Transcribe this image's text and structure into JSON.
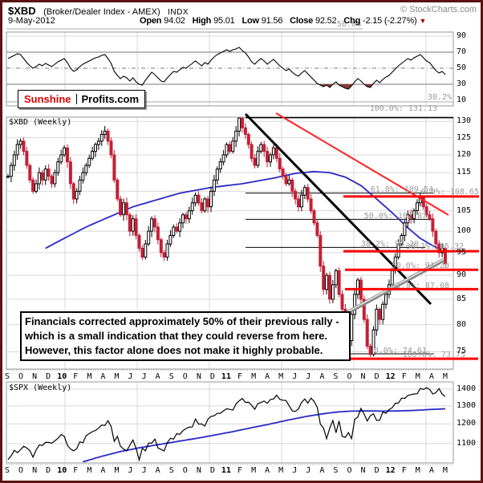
{
  "header": {
    "symbol": "$XBD",
    "name": "(Broker/Dealer Index - AMEX)",
    "exchange": "INDX",
    "copyright": "© StockCharts.com",
    "date": "9-May-2012",
    "quote": [
      {
        "label": "Open",
        "value": "94.02"
      },
      {
        "label": "High",
        "value": "95.01"
      },
      {
        "label": "Low",
        "value": "91.56"
      },
      {
        "label": "Close",
        "value": "92.52"
      },
      {
        "label": "Chg",
        "value": "-2.15 (-2.27%)"
      }
    ],
    "chg_direction": "down"
  },
  "icons": {
    "chg_down": "▼"
  },
  "logo": {
    "left": "Sunshine",
    "right": "Profits.com"
  },
  "annotation": {
    "lines": [
      "Financials corrected approximately 50% of their previous rally -",
      "which is a small indication that they could reverse from here.",
      "However, this factor alone does not make it highly probable."
    ]
  },
  "panels": {
    "rsi": {
      "yticks": [
        90,
        70,
        50,
        30,
        10
      ]
    },
    "main": {
      "title": "$XBD (Weekly)",
      "yticks": [
        130,
        125,
        120,
        115,
        105,
        100,
        95,
        90,
        85,
        80,
        75
      ]
    },
    "spx": {
      "title": "$SPX (Weekly)",
      "yticks": [
        1400,
        1300,
        1200,
        1100
      ]
    }
  },
  "x_axis": {
    "months": [
      "S",
      "O",
      "N",
      "D",
      "10",
      "F",
      "M",
      "A",
      "M",
      "J",
      "J",
      "A",
      "S",
      "O",
      "N",
      "D",
      "11",
      "F",
      "M",
      "A",
      "M",
      "J",
      "J",
      "A",
      "S",
      "O",
      "N",
      "D",
      "12",
      "F",
      "M",
      "A",
      "M"
    ],
    "bold_indices": [
      4,
      16,
      28
    ]
  },
  "colors": {
    "frame": "#5a1414",
    "grid": "#d8d8d8",
    "panel_border": "#999999",
    "candle_down": "#c32136",
    "ma_blue": "#2929c8",
    "fib_red": "#ff0000",
    "trend_black": "#000000",
    "trend_red": "#ff2020",
    "trend_silver": "#8a8a8a",
    "fib_text": "#999999",
    "indicator": "#000000",
    "oversold_fill": "#8b3a3a"
  },
  "chart_data": [
    {
      "type": "line",
      "name": "momentum-indicator",
      "panel": "top",
      "ylim": [
        0,
        100
      ],
      "overbought": 70,
      "midline": 50,
      "oversold": 30,
      "context_fib_labels": [
        {
          "pct": "50.0%",
          "y": 36,
          "x2": 452
        },
        {
          "pct": "38.2%",
          "y": 127,
          "x2": 565
        }
      ],
      "values": [
        62,
        64,
        66,
        68,
        67,
        62,
        57,
        53,
        50,
        52,
        55,
        53,
        56,
        54,
        52,
        55,
        58,
        60,
        62,
        57,
        50,
        46,
        48,
        52,
        55,
        57,
        59,
        61,
        63,
        64,
        66,
        67,
        62,
        56,
        46,
        41,
        37,
        40,
        38,
        34,
        38,
        33,
        30,
        29,
        35,
        40,
        45,
        42,
        38,
        34,
        33,
        38,
        42,
        46,
        45,
        48,
        51,
        50,
        53,
        56,
        59,
        56,
        53,
        57,
        55,
        60,
        64,
        67,
        69,
        71,
        73,
        71,
        73,
        74,
        76,
        72,
        69,
        64,
        58,
        55,
        59,
        62,
        59,
        55,
        58,
        61,
        57,
        53,
        50,
        47,
        49,
        45,
        42,
        40,
        44,
        47,
        43,
        39,
        35,
        31,
        29,
        27,
        29,
        26,
        30,
        33,
        29,
        27,
        25,
        24,
        28,
        33,
        37,
        34,
        30,
        27,
        26,
        31,
        35,
        32,
        36,
        39,
        41,
        45,
        49,
        53,
        56,
        59,
        62,
        60,
        63,
        65,
        67,
        63,
        59,
        57,
        52,
        47,
        44,
        46,
        42
      ]
    },
    {
      "type": "candlestick",
      "name": "xbd-weekly",
      "panel": "main",
      "scale": "log",
      "weekly_closes": [
        114,
        117,
        120,
        123,
        124,
        121,
        117,
        113,
        110,
        112,
        115,
        113,
        116,
        114,
        112,
        115,
        118,
        120,
        122,
        118,
        112,
        108,
        110,
        113,
        115,
        117,
        119,
        121,
        123,
        124,
        126,
        127,
        124,
        120,
        113,
        108,
        104,
        107,
        104,
        100,
        103,
        99,
        96,
        94,
        97,
        100,
        103,
        101,
        98,
        95,
        94,
        97,
        99,
        101,
        100,
        102,
        104,
        103,
        105,
        107,
        109,
        107,
        105,
        108,
        106,
        110,
        113,
        116,
        118,
        120,
        123,
        121,
        124,
        127,
        131,
        128,
        126,
        123,
        119,
        117,
        121,
        123,
        121,
        118,
        120,
        122,
        119,
        116,
        114,
        112,
        113,
        110,
        108,
        106,
        109,
        111,
        108,
        105,
        102,
        99,
        92,
        87,
        90,
        85,
        88,
        91,
        86,
        83,
        80,
        77,
        82,
        86,
        89,
        85,
        81,
        76,
        74.5,
        79,
        83,
        81,
        84,
        86,
        88,
        91,
        94,
        97,
        99,
        102,
        104,
        103,
        105,
        107,
        108.4,
        106,
        104,
        103,
        100,
        97,
        95,
        96,
        92.52
      ],
      "ma_anchors": [
        [
          12,
          96
        ],
        [
          25,
          101
        ],
        [
          40,
          106
        ],
        [
          55,
          109.5
        ],
        [
          65,
          111
        ],
        [
          75,
          112
        ],
        [
          85,
          113.5
        ],
        [
          92,
          114.8
        ],
        [
          98,
          115.3
        ],
        [
          103,
          115
        ],
        [
          108,
          113.8
        ],
        [
          113,
          111.5
        ],
        [
          118,
          108
        ],
        [
          123,
          104.5
        ],
        [
          128,
          100.8
        ],
        [
          132,
          98.3
        ],
        [
          136,
          96.6
        ],
        [
          140,
          95.2
        ]
      ],
      "fib_major": [
        {
          "pct": "100.0%",
          "price": 131.13
        },
        {
          "pct": "61.8%",
          "price": 109.54
        },
        {
          "pct": "50.0%",
          "price": 102.87
        },
        {
          "pct": "38.2%",
          "price": 96.2
        },
        {
          "pct": "0.0%",
          "price": 74.61
        }
      ],
      "fib_minor": [
        {
          "pct": "0.0%",
          "price": 108.65
        },
        {
          "pct": "38.2%",
          "price": 95.32
        },
        {
          "pct": "50.0%",
          "price": 91.2
        },
        {
          "pct": "61.8%",
          "price": 87.08
        },
        {
          "pct": "100.0%",
          "price": 73.75
        }
      ],
      "trendlines": [
        {
          "name": "downtrend-line",
          "color": "#000000",
          "width": 3,
          "x1": 306,
          "y1": 142,
          "x2": 537,
          "y2": 379
        },
        {
          "name": "resistance-line",
          "color": "#ff2020",
          "width": 2,
          "x1": 344,
          "y1": 141,
          "x2": 559,
          "y2": 268
        },
        {
          "name": "support-channel-line",
          "color": "#8a8a8a",
          "width": 5,
          "x1": 425,
          "y1": 394,
          "x2": 553,
          "y2": 324,
          "highlight": true
        }
      ]
    },
    {
      "type": "line",
      "name": "spx-weekly",
      "panel": "bottom",
      "weekly_closes": [
        1025,
        1042,
        1068,
        1057,
        1071,
        1087,
        1079,
        1066,
        1036,
        1069,
        1093,
        1091,
        1106,
        1106,
        1102,
        1114,
        1126,
        1145,
        1136,
        1092,
        1074,
        1066,
        1075,
        1109,
        1104,
        1139,
        1150,
        1160,
        1166,
        1178,
        1194,
        1192,
        1217,
        1187,
        1111,
        1136,
        1088,
        1074,
        1065,
        1092,
        1118,
        1077,
        1023,
        1078,
        1065,
        1103,
        1102,
        1122,
        1079,
        1072,
        1065,
        1105,
        1126,
        1122,
        1149,
        1146,
        1165,
        1176,
        1183,
        1184,
        1226,
        1199,
        1200,
        1189,
        1225,
        1240,
        1244,
        1257,
        1258,
        1272,
        1283,
        1280,
        1276,
        1311,
        1329,
        1343,
        1320,
        1321,
        1304,
        1280,
        1313,
        1319,
        1328,
        1314,
        1337,
        1340,
        1363,
        1338,
        1333,
        1331,
        1300,
        1271,
        1268,
        1283,
        1320,
        1340,
        1316,
        1345,
        1325,
        1292,
        1199,
        1179,
        1124,
        1178,
        1218,
        1154,
        1216,
        1136,
        1131,
        1155,
        1125,
        1224,
        1238,
        1285,
        1254,
        1216,
        1244,
        1255,
        1219,
        1220,
        1265,
        1258,
        1278,
        1289,
        1315,
        1316,
        1345,
        1343,
        1361,
        1366,
        1370,
        1371,
        1404,
        1397,
        1408,
        1398,
        1370,
        1378,
        1403,
        1369,
        1354
      ],
      "ma_anchors": [
        [
          24,
          1015
        ],
        [
          30,
          1040
        ],
        [
          36,
          1062
        ],
        [
          42,
          1080
        ],
        [
          48,
          1095
        ],
        [
          54,
          1110
        ],
        [
          60,
          1125
        ],
        [
          66,
          1142
        ],
        [
          72,
          1160
        ],
        [
          78,
          1180
        ],
        [
          84,
          1200
        ],
        [
          90,
          1222
        ],
        [
          96,
          1242
        ],
        [
          102,
          1258
        ],
        [
          106,
          1266
        ],
        [
          110,
          1270
        ],
        [
          115,
          1271
        ],
        [
          120,
          1270
        ],
        [
          125,
          1271
        ],
        [
          130,
          1274
        ],
        [
          135,
          1279
        ],
        [
          140,
          1283
        ]
      ]
    }
  ]
}
